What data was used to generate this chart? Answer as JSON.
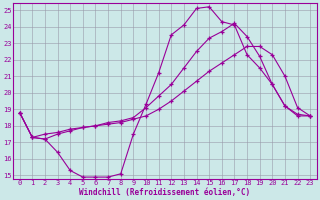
{
  "xlabel": "Windchill (Refroidissement éolien,°C)",
  "background_color": "#cce8e8",
  "line_color": "#990099",
  "grid_color": "#9999aa",
  "xlim": [
    -0.5,
    23.5
  ],
  "ylim": [
    14.8,
    25.4
  ],
  "xticks": [
    0,
    1,
    2,
    3,
    4,
    5,
    6,
    7,
    8,
    9,
    10,
    11,
    12,
    13,
    14,
    15,
    16,
    17,
    18,
    19,
    20,
    21,
    22,
    23
  ],
  "yticks": [
    15,
    16,
    17,
    18,
    19,
    20,
    21,
    22,
    23,
    24,
    25
  ],
  "series1_x": [
    0,
    1,
    2,
    3,
    4,
    5,
    6,
    7,
    8,
    9,
    10,
    11,
    12,
    13,
    14,
    15,
    16,
    17,
    18,
    19,
    20,
    21,
    22,
    23
  ],
  "series1_y": [
    18.8,
    17.3,
    17.2,
    16.4,
    15.3,
    14.9,
    14.9,
    14.9,
    15.1,
    17.5,
    19.3,
    21.2,
    23.5,
    24.1,
    25.1,
    25.2,
    24.3,
    24.1,
    22.3,
    21.5,
    20.5,
    19.2,
    18.6,
    18.6
  ],
  "series2_x": [
    0,
    1,
    2,
    3,
    4,
    5,
    6,
    7,
    8,
    9,
    10,
    11,
    12,
    13,
    14,
    15,
    16,
    17,
    18,
    19,
    20,
    21,
    22,
    23
  ],
  "series2_y": [
    18.8,
    17.3,
    17.5,
    17.6,
    17.8,
    17.9,
    18.0,
    18.1,
    18.2,
    18.4,
    18.6,
    19.0,
    19.5,
    20.1,
    20.7,
    21.3,
    21.8,
    22.3,
    22.8,
    22.8,
    22.3,
    21.0,
    19.1,
    18.6
  ],
  "series3_x": [
    0,
    1,
    2,
    3,
    4,
    5,
    6,
    7,
    8,
    9,
    10,
    11,
    12,
    13,
    14,
    15,
    16,
    17,
    18,
    19,
    20,
    21,
    22,
    23
  ],
  "series3_y": [
    18.8,
    17.3,
    17.2,
    17.5,
    17.7,
    17.9,
    18.0,
    18.2,
    18.3,
    18.5,
    19.1,
    19.8,
    20.5,
    21.5,
    22.5,
    23.3,
    23.7,
    24.2,
    23.4,
    22.2,
    20.5,
    19.2,
    18.7,
    18.6
  ]
}
